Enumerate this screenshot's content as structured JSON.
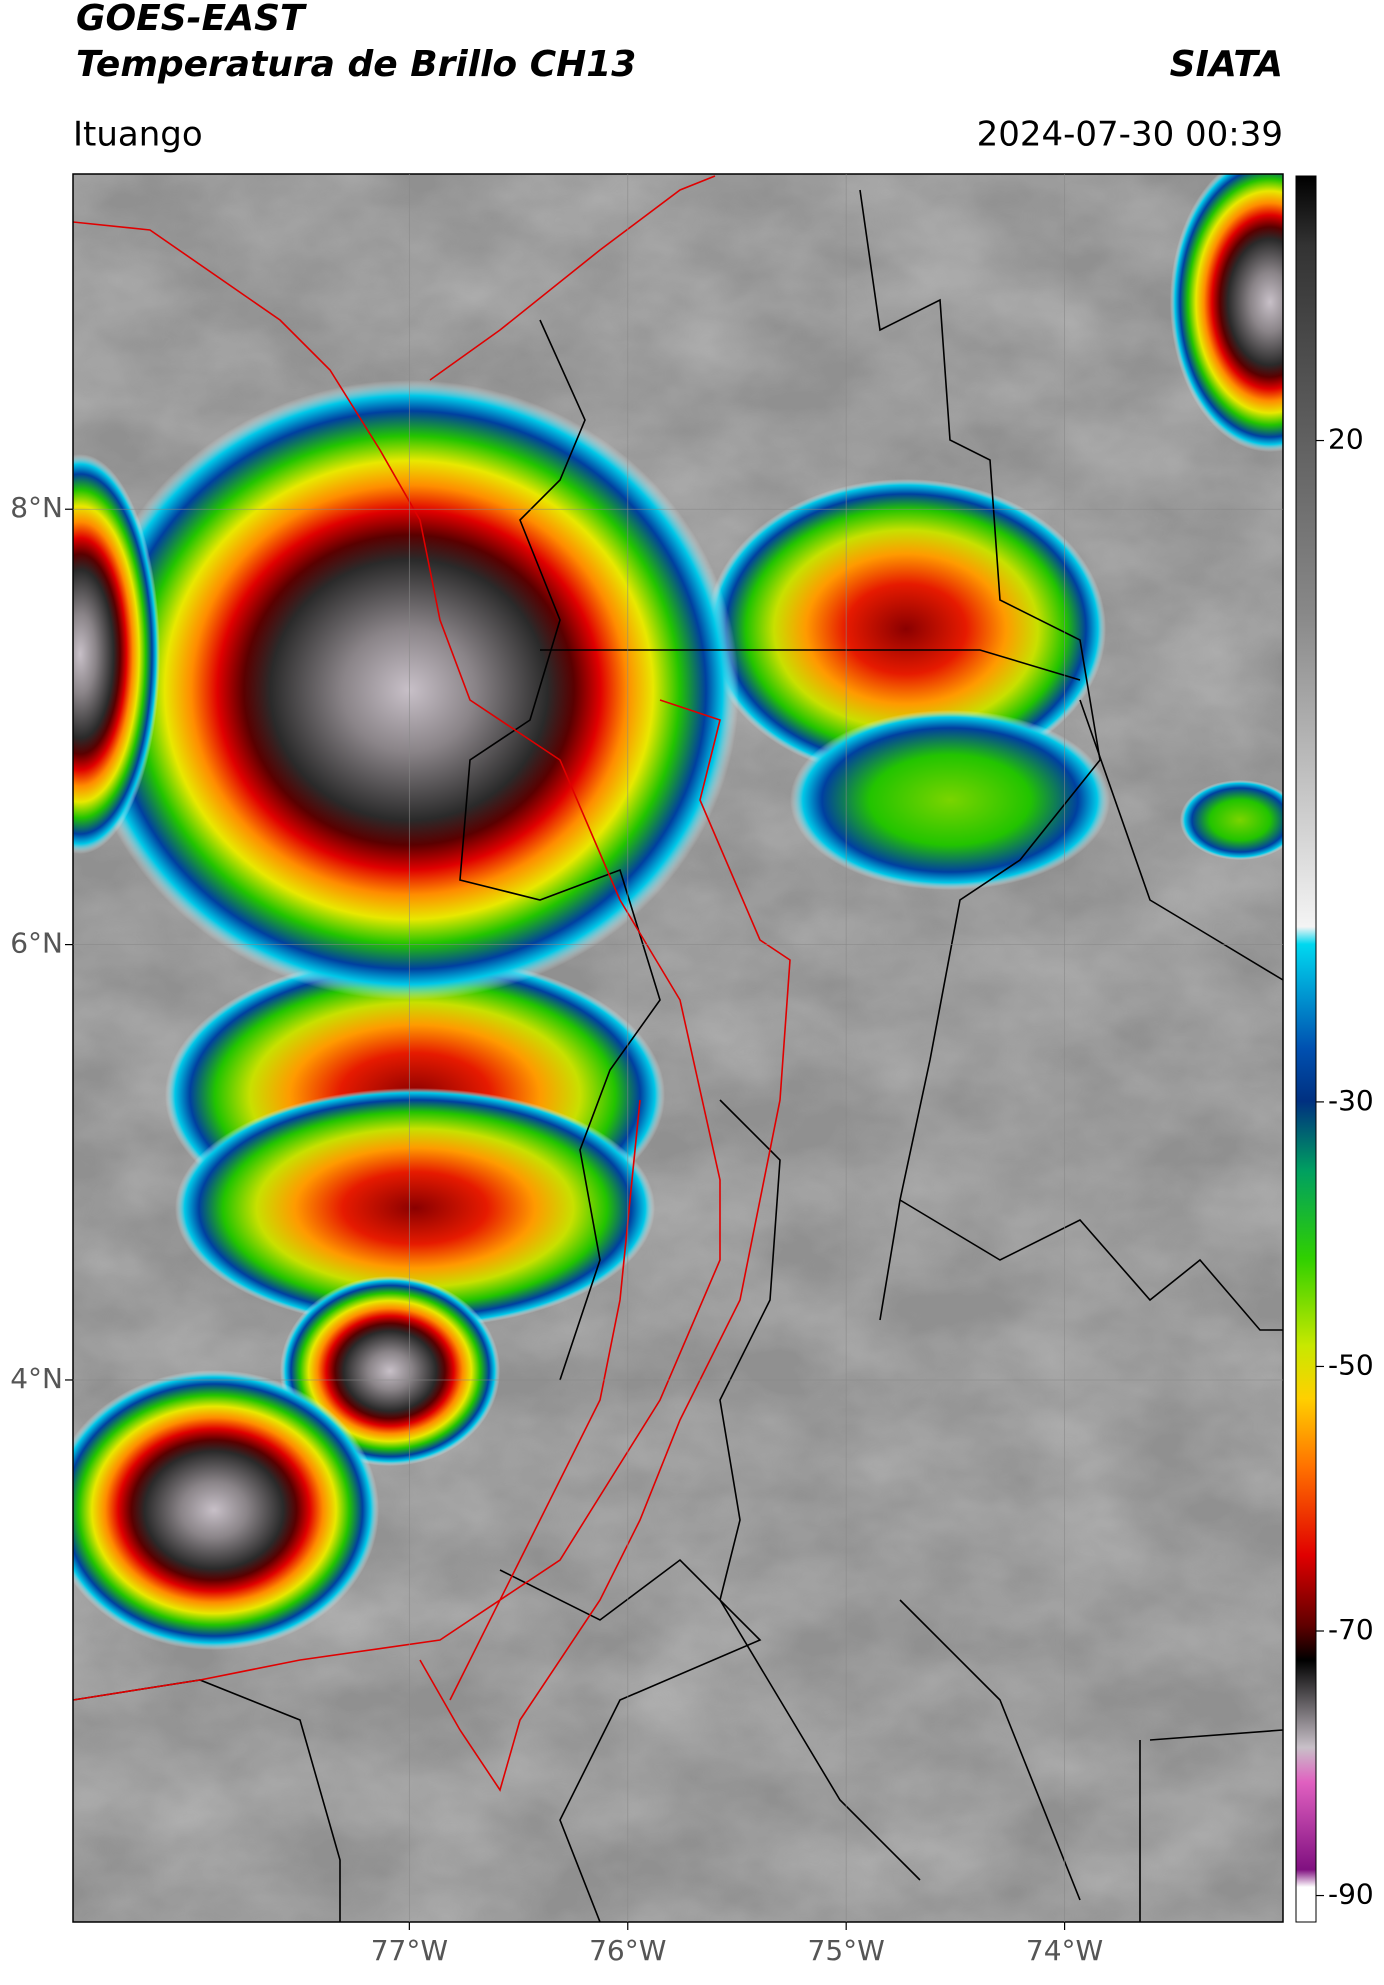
{
  "header": {
    "title": "GOES-EAST",
    "subtitle": "Temperatura de Brillo CH13",
    "source": "SIATA",
    "location": "Ituango",
    "datetime": "2024-07-30 00:39"
  },
  "map": {
    "xlim": [
      -78.54,
      -73.0
    ],
    "ylim": [
      1.51,
      9.54
    ],
    "xticks": [
      {
        "value": -77,
        "label": "77°W"
      },
      {
        "value": -76,
        "label": "76°W"
      },
      {
        "value": -75,
        "label": "75°W"
      },
      {
        "value": -74,
        "label": "74°W"
      }
    ],
    "yticks": [
      {
        "value": 8,
        "label": "8°N"
      },
      {
        "value": 6,
        "label": "6°N"
      },
      {
        "value": 4,
        "label": "4°N"
      }
    ]
  },
  "colorbar": {
    "clim": [
      -92,
      40
    ],
    "ticks": [
      20,
      -30,
      -50,
      -70,
      -90
    ]
  }
}
